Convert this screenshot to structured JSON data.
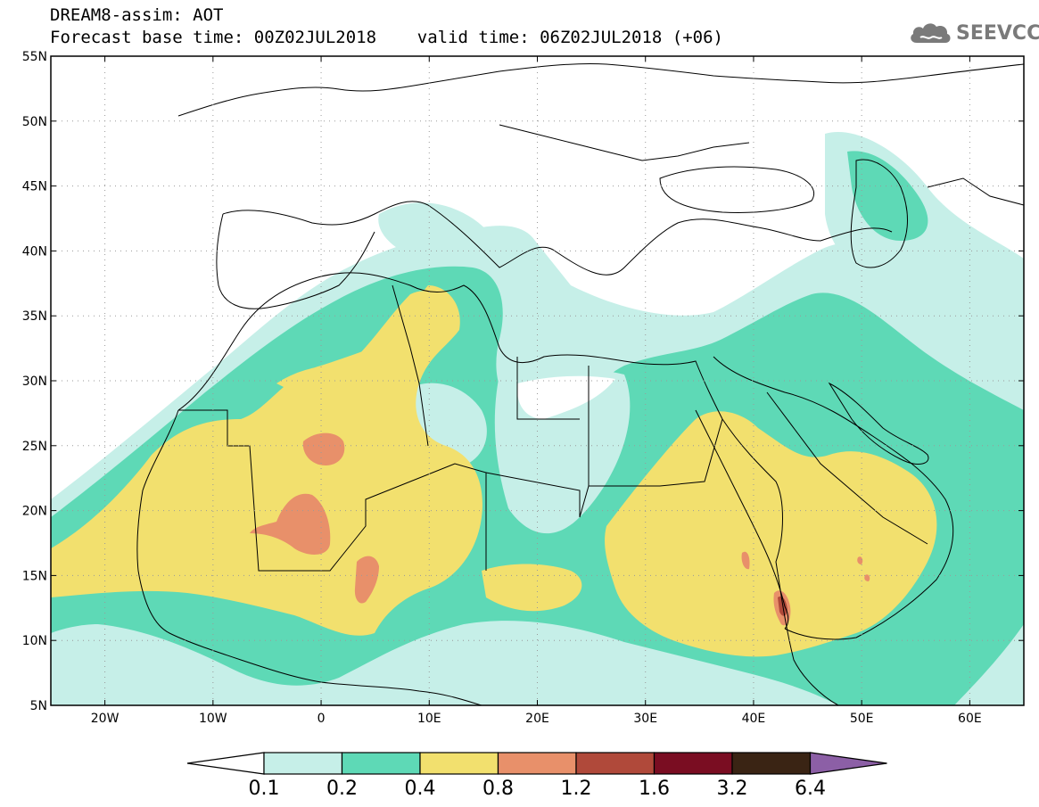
{
  "header": {
    "title_line1": "DREAM8-assim: AOT",
    "title_line2": "Forecast base time: 00Z02JUL2018    valid time: 06Z02JUL2018 (+06)"
  },
  "logo": {
    "text": "SEEVCCC",
    "icon": "cloud-icon"
  },
  "map": {
    "lon_range": [
      -25,
      65
    ],
    "lat_range": [
      5,
      55
    ],
    "lat_ticks": [
      {
        "value": 55,
        "label": "55N"
      },
      {
        "value": 50,
        "label": "50N"
      },
      {
        "value": 45,
        "label": "45N"
      },
      {
        "value": 40,
        "label": "40N"
      },
      {
        "value": 35,
        "label": "35N"
      },
      {
        "value": 30,
        "label": "30N"
      },
      {
        "value": 25,
        "label": "25N"
      },
      {
        "value": 20,
        "label": "20N"
      },
      {
        "value": 15,
        "label": "15N"
      },
      {
        "value": 10,
        "label": "10N"
      },
      {
        "value": 5,
        "label": "5N"
      }
    ],
    "lon_ticks": [
      {
        "value": -20,
        "label": "20W"
      },
      {
        "value": -10,
        "label": "10W"
      },
      {
        "value": 0,
        "label": "0"
      },
      {
        "value": 10,
        "label": "10E"
      },
      {
        "value": 20,
        "label": "20E"
      },
      {
        "value": 30,
        "label": "30E"
      },
      {
        "value": 40,
        "label": "40E"
      },
      {
        "value": 50,
        "label": "50E"
      },
      {
        "value": 60,
        "label": "60E"
      }
    ],
    "grid": "dotted"
  },
  "colorbar": {
    "labels": [
      "0.1",
      "0.2",
      "0.4",
      "0.8",
      "1.2",
      "1.6",
      "3.2",
      "6.4"
    ],
    "under_color": "#ffffff",
    "over_color": "#8c5fa6",
    "colors": [
      "#c6efe8",
      "#5ed9b6",
      "#f2e06e",
      "#e8906a",
      "#b0493a",
      "#7a0d22",
      "#3a2414"
    ]
  }
}
